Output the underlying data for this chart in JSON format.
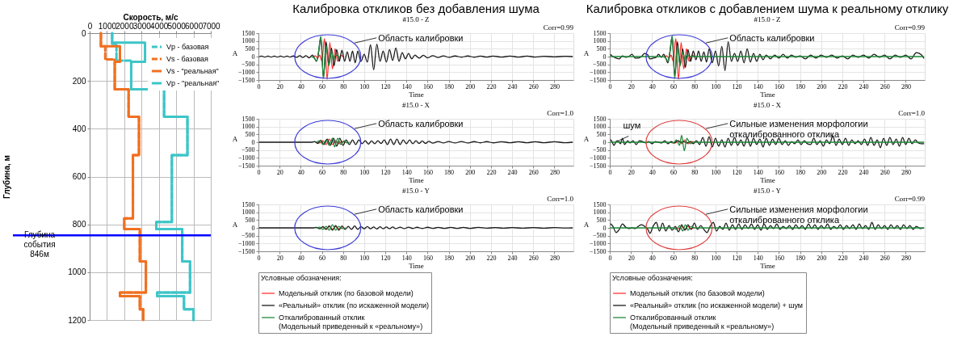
{
  "chart_data": [
    {
      "type": "line",
      "xlabel": "Скорость, м/с",
      "ylabel": "Глубина, м",
      "xlim": [
        0,
        7000
      ],
      "xticks": [
        0,
        1000,
        2000,
        3000,
        4000,
        5000,
        6000,
        7000
      ],
      "ylim": [
        1200,
        0
      ],
      "yticks": [
        0,
        200,
        400,
        600,
        800,
        1000,
        1200
      ],
      "grid": true,
      "legend": "top right",
      "series": [
        {
          "name": "Vp - базовая",
          "color": "#3ec5c8",
          "line_style": "dashed",
          "x": [
            1300,
            1300,
            1550,
            1550,
            2400,
            2400,
            4300,
            4300,
            5650,
            5650,
            4750,
            4750,
            3850,
            3850,
            5350,
            5350,
            5800,
            5800,
            3900,
            3900,
            5450,
            5450,
            6000,
            6000
          ],
          "values": [
            0,
            45,
            45,
            115,
            115,
            235,
            235,
            350,
            350,
            510,
            510,
            790,
            790,
            820,
            820,
            955,
            955,
            1085,
            1085,
            1100,
            1100,
            1155,
            1155,
            1200
          ]
        },
        {
          "name": "Vs - базовая",
          "color": "#f07020",
          "line_style": "dashed",
          "x": [
            650,
            650,
            900,
            900,
            1450,
            1450,
            2250,
            2250,
            2850,
            2850,
            2500,
            2500,
            2000,
            2000,
            2900,
            2900,
            3250,
            3250,
            1750,
            1750,
            2900,
            2900,
            3100,
            3100
          ],
          "values": [
            0,
            55,
            55,
            110,
            110,
            235,
            235,
            350,
            350,
            510,
            510,
            775,
            775,
            820,
            820,
            955,
            955,
            1085,
            1085,
            1100,
            1100,
            1155,
            1155,
            1200
          ]
        },
        {
          "name": "Vs - \"реальная\"",
          "color": "#f07020",
          "line_style": "solid",
          "x": [
            650,
            650,
            1750,
            1750,
            1450,
            1450,
            2250,
            2250,
            2850,
            2850,
            2500,
            2500,
            2000,
            2000,
            2900,
            2900,
            3250,
            3250,
            1750,
            1750,
            2900,
            2900,
            3100,
            3100
          ],
          "values": [
            0,
            55,
            55,
            120,
            120,
            235,
            235,
            350,
            350,
            510,
            510,
            775,
            775,
            820,
            820,
            955,
            955,
            1085,
            1085,
            1100,
            1100,
            1155,
            1155,
            1200
          ]
        },
        {
          "name": "Vp - \"реальная\"",
          "color": "#3ec5c8",
          "line_style": "solid",
          "x": [
            1300,
            1300,
            3200,
            3200,
            2400,
            2400,
            4300,
            4300,
            5650,
            5650,
            4750,
            4750,
            3850,
            3850,
            5350,
            5350,
            5800,
            5800,
            3900,
            3900,
            5450,
            5450,
            6000,
            6000
          ],
          "values": [
            0,
            40,
            40,
            120,
            120,
            235,
            235,
            350,
            350,
            510,
            510,
            790,
            790,
            820,
            820,
            955,
            955,
            1085,
            1085,
            1100,
            1100,
            1155,
            1155,
            1200
          ]
        }
      ],
      "ref_lines": [
        {
          "axis": "y",
          "value": 846,
          "label": "Глубина события 846м",
          "color": "#0000ff"
        }
      ]
    },
    {
      "type": "line",
      "title": "Калибровка откликов  без добавления шума",
      "subtitle": "#15.0 - Z",
      "xlabel": "Time",
      "ylabel": "A",
      "xlim": [
        0,
        298
      ],
      "xticks": [
        0,
        20,
        40,
        60,
        80,
        100,
        120,
        140,
        160,
        180,
        200,
        220,
        240,
        260,
        280
      ],
      "ylim": [
        -1500,
        1500
      ],
      "yticks": [
        -1500,
        -1000,
        -500,
        0,
        500,
        1000,
        1500
      ],
      "grid": true,
      "annotations": [
        "Corr=0.99",
        "Область калибровки"
      ],
      "series": [
        {
          "color": "#ff3333",
          "x": [
            52,
            54,
            56,
            58,
            60,
            62.5,
            65,
            67.5,
            70,
            72.5,
            75,
            78,
            80
          ],
          "values": [
            0,
            50,
            -100,
            100,
            -300,
            1150,
            -1450,
            900,
            -800,
            500,
            -300,
            100,
            0
          ]
        },
        {
          "color": "#1a1a1a",
          "x": [
            1,
            3,
            6,
            9,
            12,
            15,
            18,
            21,
            24,
            27,
            30,
            33,
            36,
            39,
            42,
            45,
            48,
            51,
            55,
            57,
            59,
            61.5,
            64,
            66.5,
            69,
            71.5,
            74,
            76.5,
            79,
            81.5,
            84,
            86.5,
            89,
            91.5,
            94,
            97,
            100,
            103,
            106,
            109,
            112,
            115,
            118,
            121,
            124,
            127,
            130,
            133,
            136,
            139,
            142,
            145,
            148,
            152,
            156,
            160,
            165,
            170,
            175,
            180,
            186,
            192,
            198,
            204,
            210,
            216,
            222,
            230,
            238,
            246,
            254,
            262,
            270,
            280,
            290,
            297
          ],
          "values": [
            0,
            30,
            -30,
            30,
            -30,
            30,
            -30,
            30,
            -30,
            30,
            -30,
            40,
            -50,
            60,
            -60,
            60,
            -80,
            100,
            -300,
            300,
            1250,
            -1350,
            950,
            -500,
            550,
            -600,
            450,
            -300,
            400,
            -300,
            300,
            -300,
            350,
            -400,
            350,
            -300,
            150,
            -350,
            750,
            -850,
            800,
            -300,
            350,
            -350,
            450,
            -250,
            550,
            -300,
            250,
            -150,
            200,
            -150,
            100,
            -100,
            80,
            -80,
            60,
            -60,
            50,
            -50,
            40,
            -40,
            40,
            -40,
            30,
            -30,
            30,
            -30,
            30,
            -30,
            30,
            -30,
            20,
            -20,
            20,
            0
          ]
        },
        {
          "color": "#1f8a3a",
          "x": [
            50,
            53,
            55,
            57,
            59,
            61.5,
            64,
            66.5,
            69,
            71,
            73,
            76
          ],
          "values": [
            0,
            -100,
            -300,
            400,
            1300,
            -1400,
            700,
            -600,
            300,
            -200,
            100,
            0
          ]
        }
      ]
    },
    {
      "type": "line",
      "title": "#15.0 - X",
      "xlabel": "Time",
      "ylabel": "A",
      "xlim": [
        0,
        298
      ],
      "xticks": [
        0,
        20,
        40,
        60,
        80,
        100,
        120,
        140,
        160,
        180,
        200,
        220,
        240,
        260,
        280
      ],
      "ylim": [
        -1500,
        1500
      ],
      "yticks": [
        -1500,
        -1000,
        -500,
        0,
        500,
        1000,
        1500
      ],
      "grid": true,
      "annotations": [
        "Corr=1.0",
        "Область калибровки"
      ],
      "series": [
        {
          "color": "#ff3333",
          "x": [
            55,
            58,
            61,
            64,
            67,
            70,
            73,
            76,
            79,
            82
          ],
          "values": [
            0,
            -50,
            100,
            -150,
            200,
            -150,
            100,
            -100,
            50,
            0
          ]
        },
        {
          "color": "#1a1a1a",
          "x": [
            1,
            50,
            53,
            56,
            59,
            62,
            65,
            68,
            71,
            74,
            77,
            80,
            83,
            86,
            89,
            92,
            95,
            98,
            101,
            104,
            107,
            110,
            113,
            116,
            119,
            122,
            125,
            128,
            131,
            134,
            137,
            140,
            143,
            146,
            149,
            152,
            155,
            158,
            161,
            165,
            170,
            175,
            180,
            186,
            192,
            198,
            204,
            210,
            216,
            222,
            230,
            238,
            246,
            254,
            262,
            270,
            280,
            290,
            297
          ],
          "values": [
            0,
            0,
            50,
            -80,
            120,
            -150,
            200,
            -200,
            250,
            -250,
            250,
            -200,
            150,
            -150,
            150,
            -150,
            150,
            -100,
            100,
            -120,
            80,
            -100,
            100,
            -80,
            150,
            -150,
            200,
            -150,
            200,
            -150,
            150,
            -100,
            150,
            -100,
            100,
            -80,
            80,
            -80,
            60,
            -60,
            50,
            -50,
            50,
            -50,
            50,
            -50,
            40,
            -40,
            40,
            -40,
            30,
            -30,
            30,
            -30,
            30,
            -30,
            30,
            -30,
            0
          ]
        },
        {
          "color": "#1f8a3a",
          "x": [
            55,
            58,
            61,
            64,
            67,
            70,
            72,
            75,
            78,
            81,
            84,
            86
          ],
          "values": [
            0,
            100,
            -150,
            150,
            -200,
            250,
            -300,
            250,
            -150,
            100,
            -50,
            0
          ]
        }
      ]
    },
    {
      "type": "line",
      "title": "#15.0 - Y",
      "xlabel": "Time",
      "ylabel": "A",
      "xlim": [
        0,
        298
      ],
      "xticks": [
        0,
        20,
        40,
        60,
        80,
        100,
        120,
        140,
        160,
        180,
        200,
        220,
        240,
        260,
        280
      ],
      "ylim": [
        -1500,
        1500
      ],
      "yticks": [
        -1500,
        -1000,
        -500,
        0,
        500,
        1000,
        1500
      ],
      "grid": true,
      "legend": "bottom",
      "legend_title": "Условные обозначения:",
      "annotations": [
        "Corr=1.0",
        "Область калибровки"
      ],
      "series": [
        {
          "name": "Модельный отклик (по базовой модели)",
          "color": "#ff3333",
          "x": [
            61,
            64,
            67,
            70,
            73,
            76,
            79
          ],
          "values": [
            50,
            -80,
            120,
            -100,
            80,
            -60,
            0
          ]
        },
        {
          "name": "«Реальный» отклик (по искаженной модели)",
          "color": "#1a1a1a",
          "x": [
            1,
            52,
            55,
            58,
            61,
            64,
            67,
            70,
            73,
            76,
            79,
            82,
            85,
            88,
            91,
            94,
            97,
            100,
            103,
            106,
            109,
            112,
            115,
            118,
            121,
            124,
            127,
            130,
            134,
            138,
            142,
            146,
            150,
            155,
            160,
            165,
            170,
            176,
            182,
            188,
            194,
            200,
            208,
            216,
            224,
            232,
            240,
            250,
            260,
            270,
            280,
            290,
            297
          ],
          "values": [
            0,
            0,
            30,
            -60,
            80,
            -100,
            120,
            -150,
            150,
            -150,
            120,
            -100,
            100,
            -100,
            120,
            -100,
            80,
            -60,
            80,
            -60,
            60,
            -70,
            70,
            -60,
            60,
            -50,
            60,
            -50,
            50,
            -50,
            50,
            -40,
            40,
            -40,
            40,
            -30,
            30,
            -30,
            30,
            -30,
            30,
            -30,
            30,
            -20,
            20,
            -20,
            20,
            -20,
            20,
            -20,
            20,
            -10,
            0
          ]
        },
        {
          "name": "Откалиброванный отклик\n(Модельный приведенный к «реальному»)",
          "color": "#1f8a3a",
          "x": [
            55,
            58,
            61,
            64,
            67,
            70,
            73,
            76,
            79,
            82
          ],
          "values": [
            0,
            50,
            -100,
            100,
            -150,
            200,
            -150,
            100,
            -50,
            0
          ]
        }
      ]
    },
    {
      "type": "line",
      "title": "Калибровка откликов с добавлением шума к реальному отклику",
      "subtitle": "#15.0 - Z",
      "xlabel": "Time",
      "ylabel": "A",
      "xlim": [
        0,
        298
      ],
      "xticks": [
        0,
        20,
        40,
        60,
        80,
        100,
        120,
        140,
        160,
        180,
        200,
        220,
        240,
        260,
        280
      ],
      "ylim": [
        -1500,
        1500
      ],
      "yticks": [
        -1500,
        -1000,
        -500,
        0,
        500,
        1000,
        1500
      ],
      "grid": true,
      "annotations": [
        "Corr=0.99",
        "Область калибровки"
      ],
      "series": [
        {
          "color": "#ff3333",
          "x": [
            52,
            54,
            56,
            58,
            60,
            62.5,
            65,
            67.5,
            70,
            72.5,
            75,
            78,
            80
          ],
          "values": [
            0,
            50,
            -100,
            100,
            -300,
            1150,
            -1450,
            900,
            -800,
            500,
            -300,
            100,
            0
          ]
        },
        {
          "color": "#1a1a1a",
          "x": [
            1,
            3,
            6,
            9,
            12,
            15,
            18,
            21,
            24,
            27,
            30,
            33,
            36,
            38,
            41,
            44,
            46,
            49,
            51,
            53,
            55,
            57,
            59,
            61.5,
            64,
            66.5,
            69,
            71.5,
            74,
            76.5,
            79,
            81.5,
            84,
            86.5,
            89,
            91.5,
            94,
            97,
            100,
            103,
            106,
            109,
            112,
            115,
            118,
            121,
            124,
            127,
            130,
            133,
            136,
            139,
            142,
            145,
            148,
            152,
            156,
            160,
            164,
            168,
            172,
            176,
            180,
            185,
            190,
            195,
            200,
            205,
            210,
            215,
            220,
            225,
            230,
            235,
            240,
            245,
            250,
            255,
            260,
            265,
            270,
            275,
            280,
            285,
            290,
            295,
            297
          ],
          "values": [
            120,
            0,
            -100,
            -150,
            50,
            -50,
            0,
            150,
            -100,
            -100,
            0,
            200,
            100,
            -150,
            -100,
            -50,
            150,
            -50,
            150,
            -100,
            -400,
            300,
            1300,
            -1250,
            950,
            -550,
            500,
            -700,
            450,
            -300,
            350,
            -200,
            350,
            -300,
            300,
            -350,
            500,
            -400,
            350,
            -600,
            650,
            -900,
            950,
            -300,
            200,
            -300,
            350,
            -400,
            500,
            -350,
            200,
            -300,
            150,
            -200,
            100,
            -150,
            100,
            -100,
            150,
            -100,
            100,
            -50,
            50,
            -150,
            100,
            -100,
            100,
            -50,
            100,
            -100,
            50,
            -150,
            100,
            -50,
            100,
            -100,
            150,
            -50,
            100,
            -150,
            100,
            -50,
            100,
            -150,
            250,
            100,
            -100
          ]
        },
        {
          "color": "#1f8a3a",
          "x": [
            1,
            50,
            53,
            55,
            57,
            59,
            61.5,
            64,
            66.5,
            69,
            71,
            73,
            76,
            297
          ],
          "values": [
            0,
            0,
            -100,
            -300,
            400,
            1300,
            -1400,
            700,
            -600,
            300,
            -200,
            100,
            0,
            0
          ]
        }
      ]
    },
    {
      "type": "line",
      "title": "#15.0 - X",
      "xlabel": "Time",
      "ylabel": "A",
      "xlim": [
        0,
        298
      ],
      "xticks": [
        0,
        20,
        40,
        60,
        80,
        100,
        120,
        140,
        160,
        180,
        200,
        220,
        240,
        260,
        280
      ],
      "ylim": [
        -1500,
        1500
      ],
      "yticks": [
        -1500,
        -1000,
        -500,
        0,
        500,
        1000,
        1500
      ],
      "grid": true,
      "annotations": [
        "Corr=1.0",
        "шум",
        "Сильные изменения морфологии\nоткалиброванного отклика"
      ],
      "series": [
        {
          "color": "#ff3333",
          "x": [
            58,
            62,
            65,
            68,
            71,
            74,
            77,
            80
          ],
          "values": [
            0,
            -50,
            100,
            -100,
            150,
            -100,
            50,
            0
          ]
        },
        {
          "color": "#1a1a1a",
          "x": [
            1,
            2,
            4,
            6,
            8,
            10,
            12,
            14,
            17,
            19,
            22,
            25,
            28,
            31,
            34,
            37,
            40,
            43,
            46,
            49,
            52,
            55,
            58,
            61,
            64,
            67,
            70,
            73,
            76,
            79,
            82,
            85,
            88,
            91,
            94,
            97,
            100,
            103,
            106,
            109,
            112,
            115,
            118,
            121,
            124,
            127,
            130,
            133,
            136,
            139,
            142,
            145,
            148,
            151,
            154,
            157,
            160,
            163,
            166,
            169,
            172,
            175,
            178,
            181,
            184,
            187,
            190,
            193,
            196,
            199,
            202,
            205,
            208,
            211,
            214,
            217,
            220,
            223,
            226,
            229,
            232,
            235,
            238,
            241,
            244,
            247,
            250,
            253,
            256,
            259,
            262,
            265,
            268,
            271,
            274,
            277,
            280,
            283,
            286,
            289,
            292,
            295,
            297
          ],
          "values": [
            150,
            50,
            -200,
            50,
            100,
            -100,
            250,
            -150,
            100,
            -50,
            100,
            -150,
            100,
            50,
            -50,
            50,
            -100,
            50,
            0,
            -50,
            100,
            -100,
            50,
            -50,
            100,
            0,
            50,
            -50,
            50,
            -100,
            100,
            -150,
            300,
            -250,
            350,
            -300,
            250,
            -250,
            150,
            -300,
            250,
            -200,
            300,
            -200,
            150,
            -250,
            300,
            -250,
            250,
            -150,
            200,
            -300,
            250,
            -200,
            200,
            -150,
            250,
            -150,
            100,
            -200,
            50,
            -100,
            150,
            -150,
            100,
            -100,
            -150,
            250,
            -150,
            100,
            -250,
            150,
            -100,
            400,
            -200,
            200,
            -150,
            250,
            -200,
            150,
            -100,
            100,
            -150,
            200,
            -200,
            300,
            -200,
            150,
            -350,
            250,
            -200,
            300,
            -150,
            200,
            -250,
            300,
            -150,
            250,
            -100,
            150,
            -50,
            -100,
            -100
          ]
        },
        {
          "color": "#1f8a3a",
          "x": [
            1,
            55,
            60,
            63,
            66,
            68,
            70.5,
            73,
            76,
            79,
            297
          ],
          "values": [
            0,
            0,
            -50,
            150,
            -200,
            450,
            -550,
            250,
            -100,
            0,
            0
          ]
        }
      ]
    },
    {
      "type": "line",
      "title": "#15.0 - Y",
      "xlabel": "Time",
      "ylabel": "A",
      "xlim": [
        0,
        298
      ],
      "xticks": [
        0,
        20,
        40,
        60,
        80,
        100,
        120,
        140,
        160,
        180,
        200,
        220,
        240,
        260,
        280
      ],
      "ylim": [
        -1500,
        1500
      ],
      "yticks": [
        -1500,
        -1000,
        -500,
        0,
        500,
        1000,
        1500
      ],
      "grid": true,
      "legend": "bottom",
      "legend_title": "Условные обозначения:",
      "annotations": [
        "Corr=0.99",
        "Сильные изменения морфологии\nоткалиброванного отклика"
      ],
      "series": [
        {
          "name": "Модельный отклик (по базовой модели)",
          "color": "#ff3333",
          "x": [
            62,
            65,
            68,
            71,
            74,
            77,
            80
          ],
          "values": [
            0,
            -50,
            100,
            -100,
            80,
            -50,
            0
          ]
        },
        {
          "name": "«Реальный» отклик (по искаженной модели) + шум",
          "color": "#1a1a1a",
          "x": [
            1,
            3,
            6,
            9,
            12,
            15,
            18,
            21,
            24,
            27,
            30,
            33,
            36,
            38,
            41,
            44,
            47,
            50,
            53,
            56,
            59,
            62,
            65,
            68,
            71,
            74,
            77,
            80,
            83,
            86,
            89,
            92,
            95,
            98,
            101,
            104,
            107,
            110,
            113,
            116,
            119,
            122,
            125,
            128,
            131,
            134,
            137,
            140,
            143,
            146,
            149,
            152,
            155,
            158,
            161,
            164,
            167,
            170,
            173,
            176,
            179,
            182,
            185,
            188,
            191,
            194,
            197,
            200,
            203,
            206,
            209,
            212,
            215,
            218,
            221,
            224,
            227,
            230,
            233,
            236,
            239,
            242,
            245,
            248,
            251,
            254,
            257,
            260,
            263,
            266,
            269,
            272,
            275,
            278,
            281,
            284,
            287,
            290,
            294,
            297
          ],
          "values": [
            250,
            100,
            -300,
            -100,
            250,
            50,
            -50,
            0,
            -50,
            100,
            200,
            100,
            -100,
            -350,
            100,
            350,
            -200,
            300,
            -200,
            150,
            -150,
            100,
            -250,
            200,
            -150,
            200,
            -100,
            300,
            -100,
            150,
            -100,
            -300,
            100,
            350,
            -200,
            100,
            -100,
            300,
            -150,
            200,
            -100,
            250,
            -100,
            200,
            -50,
            250,
            -100,
            200,
            -150,
            250,
            -100,
            150,
            -50,
            250,
            -100,
            100,
            -50,
            150,
            -100,
            200,
            -50,
            150,
            -100,
            250,
            -50,
            200,
            -100,
            150,
            -50,
            250,
            -100,
            100,
            -50,
            200,
            -100,
            150,
            -50,
            200,
            -100,
            250,
            -50,
            150,
            -100,
            350,
            -100,
            200,
            -50,
            150,
            -100,
            200,
            -50,
            150,
            -100,
            200,
            -50,
            150,
            -100,
            100,
            -50,
            0
          ]
        },
        {
          "name": "Откалиброванный отклик\n(Модельный приведенный к «реальному»)",
          "color": "#1f8a3a",
          "x": [
            1,
            60,
            63,
            66,
            69,
            71.5,
            74,
            77,
            80,
            297
          ],
          "values": [
            0,
            0,
            -100,
            150,
            -200,
            200,
            -150,
            100,
            0,
            0
          ]
        }
      ]
    }
  ]
}
